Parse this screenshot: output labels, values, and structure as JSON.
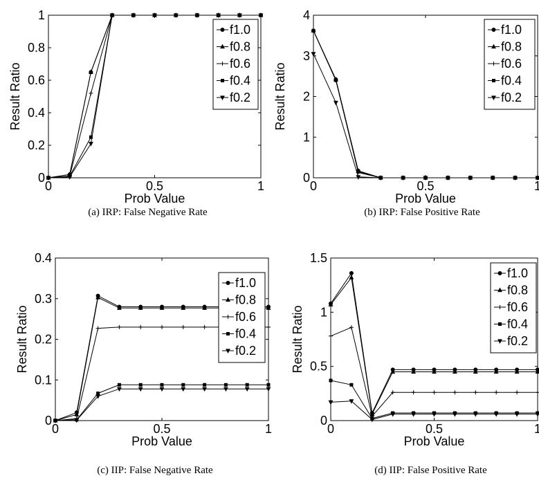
{
  "chart_data": [
    {
      "type": "line",
      "caption": "(a) IRP: False Negative Rate",
      "xlabel": "Prob Value",
      "ylabel": "Result Ratio",
      "xlim": [
        0,
        1
      ],
      "ylim": [
        0,
        1
      ],
      "xticks": [
        "0",
        "0.5",
        "1"
      ],
      "yticks": [
        "0",
        "0.2",
        "0.4",
        "0.6",
        "0.8",
        "1"
      ],
      "legend": "top-right",
      "grid": false,
      "x": [
        0,
        0.1,
        0.2,
        0.3,
        0.4,
        0.5,
        0.6,
        0.7,
        0.8,
        0.9,
        1.0
      ],
      "series": [
        {
          "name": "f1.0",
          "marker": "circle",
          "values": [
            0,
            0.02,
            0.65,
            1,
            1,
            1,
            1,
            1,
            1,
            1,
            1
          ]
        },
        {
          "name": "f0.8",
          "marker": "triangle-up",
          "values": [
            0,
            0.02,
            0.65,
            1,
            1,
            1,
            1,
            1,
            1,
            1,
            1
          ]
        },
        {
          "name": "f0.6",
          "marker": "plus",
          "values": [
            0,
            0.01,
            0.52,
            1,
            1,
            1,
            1,
            1,
            1,
            1,
            1
          ]
        },
        {
          "name": "f0.4",
          "marker": "square",
          "values": [
            0,
            0.01,
            0.25,
            1,
            1,
            1,
            1,
            1,
            1,
            1,
            1
          ]
        },
        {
          "name": "f0.2",
          "marker": "triangle-down",
          "values": [
            0,
            0.005,
            0.21,
            1,
            1,
            1,
            1,
            1,
            1,
            1,
            1
          ]
        }
      ]
    },
    {
      "type": "line",
      "caption": "(b) IRP: False Positive Rate",
      "xlabel": "Prob Value",
      "ylabel": "Result Ratio",
      "xlim": [
        0,
        1
      ],
      "ylim": [
        0,
        4
      ],
      "xticks": [
        "0",
        "0.5",
        "1"
      ],
      "yticks": [
        "0",
        "1",
        "2",
        "3",
        "4"
      ],
      "legend": "top-right",
      "grid": false,
      "x": [
        0,
        0.1,
        0.2,
        0.3,
        0.4,
        0.5,
        0.6,
        0.7,
        0.8,
        0.9,
        1.0
      ],
      "series": [
        {
          "name": "f1.0",
          "marker": "circle",
          "values": [
            3.62,
            2.42,
            0.17,
            0,
            0,
            0,
            0,
            0,
            0,
            0,
            0
          ]
        },
        {
          "name": "f0.8",
          "marker": "triangle-up",
          "values": [
            3.62,
            2.42,
            0.17,
            0,
            0,
            0,
            0,
            0,
            0,
            0,
            0
          ]
        },
        {
          "name": "f0.6",
          "marker": "plus",
          "values": [
            3.62,
            2.4,
            0.13,
            0,
            0,
            0,
            0,
            0,
            0,
            0,
            0
          ]
        },
        {
          "name": "f0.4",
          "marker": "square",
          "values": [
            3.62,
            2.4,
            0.15,
            0,
            0,
            0,
            0,
            0,
            0,
            0,
            0
          ]
        },
        {
          "name": "f0.2",
          "marker": "triangle-down",
          "values": [
            3.05,
            1.85,
            0.02,
            0,
            0,
            0,
            0,
            0,
            0,
            0,
            0
          ]
        }
      ]
    },
    {
      "type": "line",
      "caption": "(c) IIP: False Negative Rate",
      "xlabel": "Prob Value",
      "ylabel": "Result Ratio",
      "xlim": [
        0,
        1
      ],
      "ylim": [
        0,
        0.4
      ],
      "xticks": [
        "0",
        "0.5",
        "1"
      ],
      "yticks": [
        "0",
        "0.1",
        "0.2",
        "0.3",
        "0.4"
      ],
      "legend": "top-right",
      "grid": false,
      "x": [
        0,
        0.1,
        0.2,
        0.3,
        0.4,
        0.5,
        0.6,
        0.7,
        0.8,
        0.9,
        1.0
      ],
      "series": [
        {
          "name": "f1.0",
          "marker": "circle",
          "values": [
            0,
            0.02,
            0.307,
            0.28,
            0.28,
            0.28,
            0.28,
            0.28,
            0.28,
            0.28,
            0.28
          ]
        },
        {
          "name": "f0.8",
          "marker": "triangle-up",
          "values": [
            0,
            0.015,
            0.303,
            0.277,
            0.277,
            0.277,
            0.277,
            0.277,
            0.277,
            0.277,
            0.277
          ]
        },
        {
          "name": "f0.6",
          "marker": "plus",
          "values": [
            0,
            0.005,
            0.227,
            0.23,
            0.23,
            0.23,
            0.23,
            0.23,
            0.23,
            0.23,
            0.23
          ]
        },
        {
          "name": "f0.4",
          "marker": "square",
          "values": [
            0,
            0.002,
            0.067,
            0.088,
            0.088,
            0.088,
            0.088,
            0.088,
            0.088,
            0.088,
            0.088
          ]
        },
        {
          "name": "f0.2",
          "marker": "triangle-down",
          "values": [
            0,
            0.001,
            0.06,
            0.078,
            0.078,
            0.078,
            0.078,
            0.078,
            0.078,
            0.078,
            0.078
          ]
        }
      ]
    },
    {
      "type": "line",
      "caption": "(d) IIP: False Positive Rate",
      "xlabel": "Prob Value",
      "ylabel": "Result Ratio",
      "xlim": [
        0,
        1
      ],
      "ylim": [
        0,
        1.5
      ],
      "xticks": [
        "0",
        "0.5",
        "1"
      ],
      "yticks": [
        "0",
        "0.5",
        "1",
        "1.5"
      ],
      "legend": "top-right",
      "grid": false,
      "x": [
        0,
        0.1,
        0.2,
        0.3,
        0.4,
        0.5,
        0.6,
        0.7,
        0.8,
        0.9,
        1.0
      ],
      "series": [
        {
          "name": "f1.0",
          "marker": "circle",
          "values": [
            1.08,
            1.36,
            0.07,
            0.47,
            0.47,
            0.47,
            0.47,
            0.47,
            0.47,
            0.47,
            0.47
          ]
        },
        {
          "name": "f0.8",
          "marker": "triangle-up",
          "values": [
            1.07,
            1.32,
            0.06,
            0.45,
            0.45,
            0.45,
            0.45,
            0.45,
            0.45,
            0.45,
            0.45
          ]
        },
        {
          "name": "f0.6",
          "marker": "plus",
          "values": [
            0.78,
            0.86,
            0.04,
            0.26,
            0.26,
            0.26,
            0.26,
            0.26,
            0.26,
            0.26,
            0.26
          ]
        },
        {
          "name": "f0.4",
          "marker": "square",
          "values": [
            0.37,
            0.33,
            0.02,
            0.07,
            0.07,
            0.07,
            0.07,
            0.07,
            0.07,
            0.07,
            0.07
          ]
        },
        {
          "name": "f0.2",
          "marker": "triangle-down",
          "values": [
            0.17,
            0.18,
            0.01,
            0.06,
            0.06,
            0.06,
            0.06,
            0.06,
            0.06,
            0.06,
            0.06
          ]
        }
      ]
    }
  ]
}
